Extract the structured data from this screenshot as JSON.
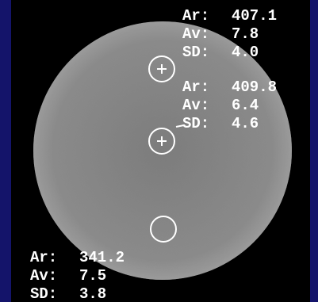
{
  "rois": [
    {
      "rows": [
        {
          "label": "Ar:",
          "value": "407.1"
        },
        {
          "label": "Av:",
          "value": "7.8"
        },
        {
          "label": "SD:",
          "value": "4.0"
        }
      ]
    },
    {
      "rows": [
        {
          "label": "Ar:",
          "value": "409.8"
        },
        {
          "label": "Av:",
          "value": "6.4"
        },
        {
          "label": "SD:",
          "value": "4.6"
        }
      ]
    },
    {
      "rows": [
        {
          "label": "Ar:",
          "value": "341.2"
        },
        {
          "label": "Av:",
          "value": "7.5"
        },
        {
          "label": "SD:",
          "value": "3.8"
        }
      ]
    }
  ]
}
